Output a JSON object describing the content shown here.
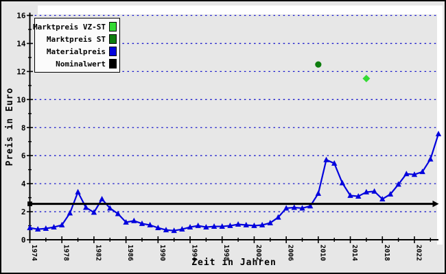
{
  "colors": {
    "background": "#e7e7e7",
    "canvas_highlight": "#ffffff",
    "axis": "#000000",
    "grid": "#1515cc",
    "materialpreis": "#0202dd",
    "nominalwert": "#000000",
    "marktpreis_st": "#0e7d0e",
    "marktpreis_vzst": "#35da35"
  },
  "chart_data": {
    "type": "line",
    "title": "",
    "xlabel": "Zeit in Jahren",
    "ylabel": "Preis in Euro",
    "xlim": [
      1974,
      2025
    ],
    "ylim": [
      0,
      16
    ],
    "grid": "horizontal dotted blue lines at each labeled y tick",
    "legend_position": "top-left",
    "yticks_major": [
      0,
      2,
      4,
      6,
      8,
      10,
      12,
      14,
      16
    ],
    "yticks_minor": [
      1,
      3,
      5,
      7,
      9,
      11,
      13,
      15
    ],
    "xticks_major": [
      1974,
      1978,
      1982,
      1986,
      1990,
      1994,
      1998,
      2002,
      2006,
      2010,
      2014,
      2018,
      2022
    ],
    "xticks_minor": [
      1976,
      1980,
      1984,
      1988,
      1992,
      1996,
      2000,
      2004,
      2008,
      2012,
      2016,
      2020,
      2024
    ],
    "series": [
      {
        "name": "Marktpreis VZ-ST",
        "type": "scatter",
        "marker": "diamond",
        "color": "#35da35",
        "x": [
          2016
        ],
        "y": [
          11.5
        ]
      },
      {
        "name": "Marktpreis ST",
        "type": "scatter",
        "marker": "circle",
        "color": "#0e7d0e",
        "x": [
          2010
        ],
        "y": [
          12.5
        ]
      },
      {
        "name": "Materialpreis",
        "type": "line",
        "marker": "triangle-up",
        "color": "#0202dd",
        "x": [
          1974,
          1975,
          1976,
          1977,
          1978,
          1979,
          1980,
          1981,
          1982,
          1983,
          1984,
          1985,
          1986,
          1987,
          1988,
          1989,
          1990,
          1991,
          1992,
          1993,
          1994,
          1995,
          1996,
          1997,
          1998,
          1999,
          2000,
          2001,
          2002,
          2003,
          2004,
          2005,
          2006,
          2007,
          2008,
          2009,
          2010,
          2011,
          2012,
          2013,
          2014,
          2015,
          2016,
          2017,
          2018,
          2019,
          2020,
          2021,
          2022,
          2023,
          2024,
          2025
        ],
        "y": [
          0.85,
          0.75,
          0.8,
          0.9,
          1.05,
          1.9,
          3.4,
          2.3,
          1.95,
          2.9,
          2.25,
          1.85,
          1.25,
          1.35,
          1.15,
          1.05,
          0.85,
          0.7,
          0.65,
          0.75,
          0.9,
          1.0,
          0.9,
          0.95,
          0.95,
          1.0,
          1.1,
          1.05,
          1.0,
          1.05,
          1.2,
          1.6,
          2.25,
          2.3,
          2.25,
          2.4,
          3.3,
          5.7,
          5.45,
          4.05,
          3.15,
          3.1,
          3.4,
          3.45,
          2.9,
          3.25,
          3.95,
          4.7,
          4.65,
          4.85,
          5.75,
          7.55
        ]
      },
      {
        "name": "Nominalwert",
        "type": "hline",
        "color": "#000000",
        "value": 2.56,
        "x_start": 1974,
        "x_end": 2025,
        "marker_left": "square",
        "marker_right": "arrow-right"
      }
    ],
    "legend": {
      "items": [
        {
          "label": "Marktpreis VZ-ST",
          "color": "#35da35"
        },
        {
          "label": "Marktpreis ST",
          "color": "#0e7d0e"
        },
        {
          "label": "Materialpreis",
          "color": "#0202dd"
        },
        {
          "label": "Nominalwert",
          "color": "#000000"
        }
      ]
    }
  }
}
